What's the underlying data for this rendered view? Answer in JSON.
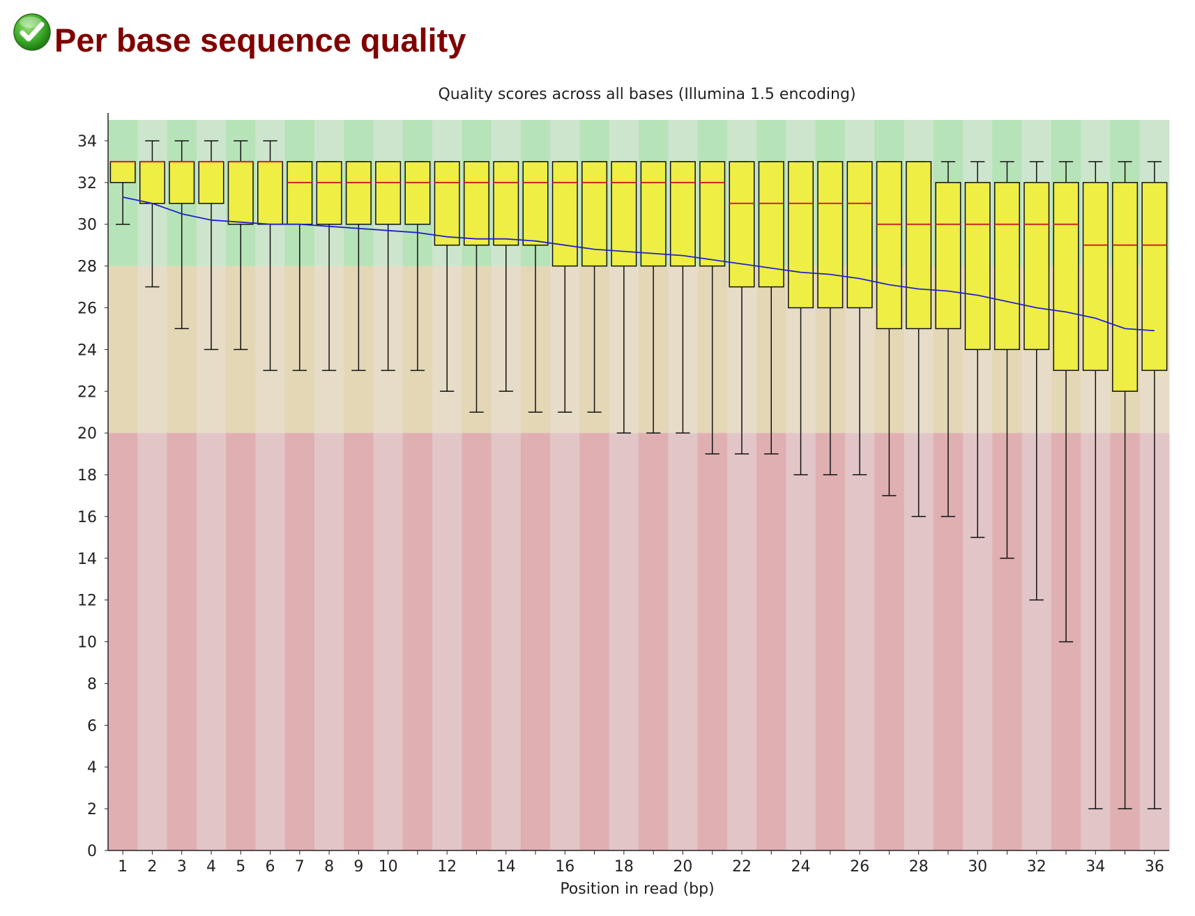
{
  "section": {
    "title": "Per base sequence quality",
    "status": "pass",
    "status_icon": "check-icon"
  },
  "colors": {
    "band_good_dark": "#b6e3b7",
    "band_good_light": "#cde5cd",
    "band_mid_dark": "#e3d7b6",
    "band_mid_light": "#e6dcc7",
    "band_bad_dark": "#dfafb1",
    "band_bad_light": "#e2c5c7",
    "box_fill": "#eeee44",
    "median": "#cc2222",
    "mean_line": "#2222cc",
    "title_color": "#800000"
  },
  "chart_data": {
    "type": "boxplot",
    "title": "Quality scores across all bases (Illumina 1.5 encoding)",
    "xlabel": "Position in read (bp)",
    "ylabel": "",
    "ylim": [
      0,
      35
    ],
    "yticks": [
      0,
      2,
      4,
      6,
      8,
      10,
      12,
      14,
      16,
      18,
      20,
      22,
      24,
      26,
      28,
      30,
      32,
      34
    ],
    "xtick_labels": [
      "1",
      "2",
      "3",
      "4",
      "5",
      "6",
      "7",
      "8",
      "9",
      "10",
      "",
      "12",
      "",
      "14",
      "",
      "16",
      "",
      "18",
      "",
      "20",
      "",
      "22",
      "",
      "24",
      "",
      "26",
      "",
      "28",
      "",
      "30",
      "",
      "32",
      "",
      "34",
      "",
      "36"
    ],
    "quality_bands": [
      {
        "name": "good",
        "from": 28,
        "to": 35
      },
      {
        "name": "reasonable",
        "from": 20,
        "to": 28
      },
      {
        "name": "poor",
        "from": 0,
        "to": 20
      }
    ],
    "positions": [
      1,
      2,
      3,
      4,
      5,
      6,
      7,
      8,
      9,
      10,
      11,
      12,
      13,
      14,
      15,
      16,
      17,
      18,
      19,
      20,
      21,
      22,
      23,
      24,
      25,
      26,
      27,
      28,
      29,
      30,
      31,
      32,
      33,
      34,
      35,
      36
    ],
    "whisker_low": [
      30,
      27,
      25,
      24,
      24,
      23,
      23,
      23,
      23,
      23,
      23,
      22,
      21,
      22,
      21,
      21,
      21,
      20,
      20,
      20,
      19,
      19,
      19,
      18,
      18,
      18,
      17,
      16,
      16,
      15,
      14,
      12,
      10,
      2,
      2,
      2
    ],
    "q1": [
      32,
      31,
      31,
      31,
      30,
      30,
      30,
      30,
      30,
      30,
      30,
      29,
      29,
      29,
      29,
      28,
      28,
      28,
      28,
      28,
      28,
      27,
      27,
      26,
      26,
      26,
      25,
      25,
      25,
      24,
      24,
      24,
      23,
      23,
      22,
      23
    ],
    "median": [
      33,
      33,
      33,
      33,
      33,
      33,
      32,
      32,
      32,
      32,
      32,
      32,
      32,
      32,
      32,
      32,
      32,
      32,
      32,
      32,
      32,
      31,
      31,
      31,
      31,
      31,
      30,
      30,
      30,
      30,
      30,
      30,
      30,
      29,
      29,
      29
    ],
    "q3": [
      33,
      33,
      33,
      33,
      33,
      33,
      33,
      33,
      33,
      33,
      33,
      33,
      33,
      33,
      33,
      33,
      33,
      33,
      33,
      33,
      33,
      33,
      33,
      33,
      33,
      33,
      33,
      33,
      32,
      32,
      32,
      32,
      32,
      32,
      32,
      32
    ],
    "whisker_high": [
      33,
      34,
      34,
      34,
      34,
      34,
      33,
      33,
      33,
      33,
      33,
      33,
      33,
      33,
      33,
      33,
      33,
      33,
      33,
      33,
      33,
      33,
      33,
      33,
      33,
      33,
      33,
      33,
      33,
      33,
      33,
      33,
      33,
      33,
      33,
      33
    ],
    "mean": [
      31.3,
      31.0,
      30.5,
      30.2,
      30.1,
      30.0,
      30.0,
      29.9,
      29.8,
      29.7,
      29.6,
      29.4,
      29.3,
      29.3,
      29.2,
      29.0,
      28.8,
      28.7,
      28.6,
      28.5,
      28.3,
      28.1,
      27.9,
      27.7,
      27.6,
      27.4,
      27.1,
      26.9,
      26.8,
      26.6,
      26.3,
      26.0,
      25.8,
      25.5,
      25.0,
      24.9
    ]
  }
}
